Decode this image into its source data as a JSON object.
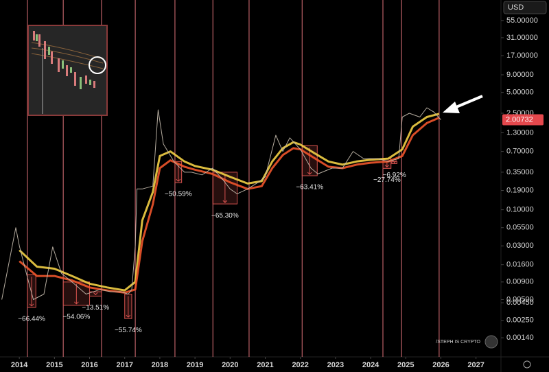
{
  "chart_data": {
    "type": "line",
    "log": true,
    "grid": false,
    "currency": "USD",
    "watermark": "/STEPH IS CRYPTO",
    "xlim": [
      2013.45,
      2027.71
    ],
    "xticks": [
      2014,
      2015,
      2016,
      2017,
      2018,
      2019,
      2020,
      2021,
      2022,
      2023,
      2024,
      2025,
      2026,
      2027
    ],
    "ylim": [
      0.00074,
      109
    ],
    "yticks": [
      {
        "value": 55,
        "label": "55.00000"
      },
      {
        "value": 31,
        "label": "31.00000"
      },
      {
        "value": 17,
        "label": "17.00000"
      },
      {
        "value": 9,
        "label": "9.00000"
      },
      {
        "value": 5,
        "label": "5.00000"
      },
      {
        "value": 2.5,
        "label": "2.50000"
      },
      {
        "value": 1.3,
        "label": "1.30000"
      },
      {
        "value": 0.7,
        "label": "0.70000"
      },
      {
        "value": 0.35,
        "label": "0.35000"
      },
      {
        "value": 0.19,
        "label": "0.19000"
      },
      {
        "value": 0.1,
        "label": "0.10000"
      },
      {
        "value": 0.055,
        "label": "0.05500"
      },
      {
        "value": 0.03,
        "label": "0.03000"
      },
      {
        "value": 0.016,
        "label": "0.01600"
      },
      {
        "value": 0.009,
        "label": "0.00900"
      },
      {
        "value": 0.005,
        "label": "0.00500"
      },
      {
        "value": 0.0045,
        "label": "0.00450"
      },
      {
        "value": 0.0025,
        "label": "0.00250"
      },
      {
        "value": 0.0014,
        "label": "0.00140"
      }
    ],
    "last_price": 2.00732,
    "last_price_color": "#e5484d",
    "vlines": [
      2014.23,
      2015.25,
      2016.34,
      2017.3,
      2018.43,
      2019.51,
      2020.54,
      2022.05,
      2024.35,
      2024.88,
      2025.95
    ],
    "vline_color": "#e0737a",
    "series": [
      {
        "color": "#f2cf45",
        "x": [
          2014.0,
          2014.5,
          2015.0,
          2015.5,
          2016.0,
          2016.5,
          2017.0,
          2017.3,
          2017.5,
          2017.8,
          2018.0,
          2018.3,
          2018.7,
          2019.0,
          2019.5,
          2020.0,
          2020.5,
          2020.9,
          2021.2,
          2021.5,
          2021.8,
          2022.0,
          2022.4,
          2022.8,
          2023.2,
          2023.6,
          2024.0,
          2024.5,
          2024.9,
          2025.2,
          2025.6,
          2025.95
        ],
        "values": [
          0.026,
          0.015,
          0.014,
          0.011,
          0.0085,
          0.0075,
          0.0068,
          0.009,
          0.07,
          0.18,
          0.6,
          0.7,
          0.5,
          0.43,
          0.38,
          0.3,
          0.24,
          0.26,
          0.5,
          0.78,
          0.95,
          0.88,
          0.66,
          0.5,
          0.45,
          0.5,
          0.53,
          0.55,
          0.75,
          1.6,
          2.2,
          2.45
        ]
      },
      {
        "color": "#f0552b",
        "x": [
          2014.0,
          2014.5,
          2015.0,
          2015.5,
          2016.0,
          2016.5,
          2017.0,
          2017.3,
          2017.5,
          2017.8,
          2018.0,
          2018.3,
          2018.7,
          2019.0,
          2019.5,
          2020.0,
          2020.5,
          2020.9,
          2021.2,
          2021.5,
          2021.8,
          2022.0,
          2022.4,
          2022.8,
          2023.2,
          2023.6,
          2024.0,
          2024.5,
          2024.9,
          2025.2,
          2025.6,
          2025.95
        ],
        "values": [
          0.018,
          0.011,
          0.011,
          0.0095,
          0.0075,
          0.0068,
          0.0063,
          0.007,
          0.035,
          0.12,
          0.4,
          0.52,
          0.42,
          0.38,
          0.33,
          0.25,
          0.2,
          0.22,
          0.4,
          0.62,
          0.78,
          0.75,
          0.56,
          0.42,
          0.4,
          0.45,
          0.48,
          0.5,
          0.6,
          1.2,
          1.8,
          2.15
        ]
      },
      {
        "color": "#c9bfb0",
        "x": [
          2013.5,
          2013.9,
          2014.0,
          2014.2,
          2014.4,
          2014.7,
          2014.95,
          2015.2,
          2015.5,
          2015.9,
          2016.3,
          2016.6,
          2016.9,
          2017.1,
          2017.2,
          2017.3,
          2017.35,
          2017.5,
          2017.8,
          2017.95,
          2018.1,
          2018.4,
          2018.7,
          2018.9,
          2019.2,
          2019.5,
          2019.8,
          2020.0,
          2020.2,
          2020.5,
          2020.8,
          2021.0,
          2021.3,
          2021.5,
          2021.7,
          2022.0,
          2022.3,
          2022.5,
          2022.9,
          2023.2,
          2023.5,
          2023.8,
          2024.2,
          2024.5,
          2024.8,
          2024.9,
          2025.1,
          2025.4,
          2025.6,
          2025.8,
          2026.0
        ],
        "values": [
          0.005,
          0.055,
          0.03,
          0.012,
          0.005,
          0.006,
          0.029,
          0.012,
          0.009,
          0.006,
          0.007,
          0.0065,
          0.0065,
          0.006,
          0.007,
          0.03,
          0.2,
          0.2,
          0.22,
          2.8,
          0.9,
          0.5,
          0.35,
          0.35,
          0.32,
          0.4,
          0.27,
          0.2,
          0.17,
          0.2,
          0.25,
          0.3,
          1.2,
          0.7,
          1.1,
          0.75,
          0.4,
          0.33,
          0.4,
          0.4,
          0.7,
          0.55,
          0.55,
          0.5,
          0.55,
          2.2,
          2.5,
          2.2,
          3.0,
          2.6,
          2.00732
        ]
      }
    ],
    "drawdowns": {
      "color": "#d9534f",
      "x0": [
        2014.23,
        2015.25,
        2016.0,
        2017.0,
        2018.43,
        2019.51,
        2022.05,
        2024.35,
        2024.6
      ],
      "x1": [
        2014.47,
        2016.0,
        2016.34,
        2017.2,
        2018.62,
        2020.2,
        2022.48,
        2024.58,
        2024.75
      ],
      "top": [
        0.0115,
        0.009,
        0.0065,
        0.006,
        0.5,
        0.35,
        0.85,
        0.55,
        0.5
      ],
      "values": [
        -66.44,
        -54.06,
        -13.51,
        -55.74,
        -50.59,
        -65.3,
        -63.41,
        -27.74,
        -6.92
      ],
      "value_labels": [
        "−66.44%",
        "−54.06%",
        "−13.51%",
        "−55.74%",
        "−50.59%",
        "−65.30%",
        "−63.41%",
        "−27.74%",
        "−6.92%"
      ]
    }
  }
}
